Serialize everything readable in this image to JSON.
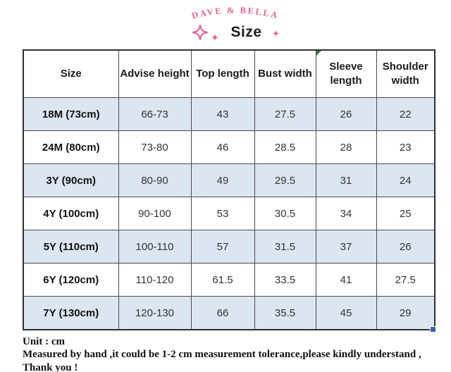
{
  "brand": {
    "name": "DAVE & BELLA",
    "color": "#ee5d92"
  },
  "page_title": "Size",
  "table": {
    "columns": [
      "Size",
      "Advise height",
      "Top length",
      "Bust width",
      "Sleeve length",
      "Shoulder width"
    ],
    "rows": [
      {
        "cells": [
          "18M (73cm)",
          "66-73",
          "43",
          "27.5",
          "26",
          "22"
        ]
      },
      {
        "cells": [
          "24M (80cm)",
          "73-80",
          "46",
          "28.5",
          "28",
          "23"
        ]
      },
      {
        "cells": [
          "3Y (90cm)",
          "80-90",
          "49",
          "29.5",
          "31",
          "24"
        ]
      },
      {
        "cells": [
          "4Y (100cm)",
          "90-100",
          "53",
          "30.5",
          "34",
          "25"
        ]
      },
      {
        "cells": [
          "5Y (110cm)",
          "100-110",
          "57",
          "31.5",
          "37",
          "26"
        ]
      },
      {
        "cells": [
          "6Y (120cm)",
          "110-120",
          "61.5",
          "33.5",
          "41",
          "27.5"
        ]
      },
      {
        "cells": [
          "7Y (130cm)",
          "120-130",
          "66",
          "35.5",
          "45",
          "29"
        ]
      }
    ],
    "stripe_color": "#dce6f1",
    "border_color": "#4a4a4a",
    "comment_indicator_color": "#2e8b2e",
    "selection_handle_color": "#3a62a7"
  },
  "footer": {
    "unit_line": "Unit : cm",
    "note_line": "Measured by hand ,it could be 1-2 cm measurement tolerance,please kindly understand , Thank you !"
  }
}
